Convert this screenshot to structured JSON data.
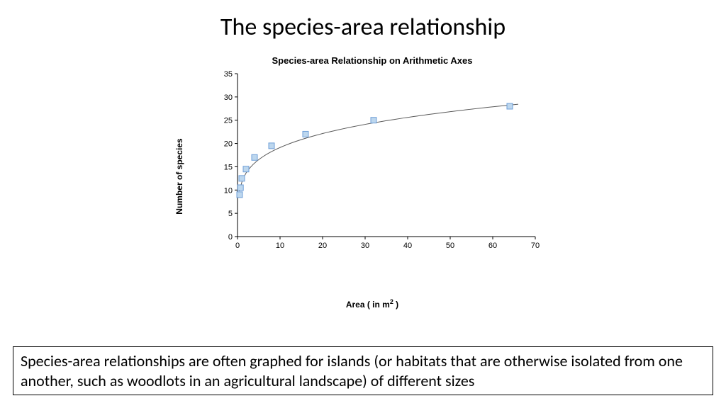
{
  "title": "The species-area relationship",
  "chart": {
    "type": "scatter-with-curve",
    "title": "Species-area Relationship on Arithmetic Axes",
    "xlabel_html": "Area ( in m<sup>2</sup> )",
    "ylabel": "Number of species",
    "xlim": [
      0,
      70
    ],
    "ylim": [
      0,
      35
    ],
    "xtick_step": 10,
    "ytick_step": 5,
    "xticks": [
      0,
      10,
      20,
      30,
      40,
      50,
      60,
      70
    ],
    "yticks": [
      0,
      5,
      10,
      15,
      20,
      25,
      30,
      35
    ],
    "marker_fill": "#bdd7ee",
    "marker_stroke": "#6f9fd8",
    "marker_size": 8,
    "curve_color": "#595959",
    "curve_width": 1,
    "tick_color": "#000000",
    "axis_color": "#000000",
    "background": "#ffffff",
    "label_fontsize": 12,
    "title_fontsize": 13,
    "tick_fontsize": 11,
    "points": [
      {
        "x": 0.5,
        "y": 9
      },
      {
        "x": 0.7,
        "y": 10.5
      },
      {
        "x": 1,
        "y": 12.5
      },
      {
        "x": 2,
        "y": 14.5
      },
      {
        "x": 4,
        "y": 17
      },
      {
        "x": 8,
        "y": 19.5
      },
      {
        "x": 16,
        "y": 22
      },
      {
        "x": 32,
        "y": 25
      },
      {
        "x": 64,
        "y": 28
      }
    ],
    "curve": {
      "comment": "power fit y = a * x^b",
      "a": 11.8,
      "b": 0.21,
      "x_from": 0.4,
      "x_to": 66,
      "samples": 80
    }
  },
  "caption": "Species-area relationships are often graphed for islands (or habitats that are otherwise isolated from one another, such as woodlots in an agricultural landscape) of different sizes"
}
